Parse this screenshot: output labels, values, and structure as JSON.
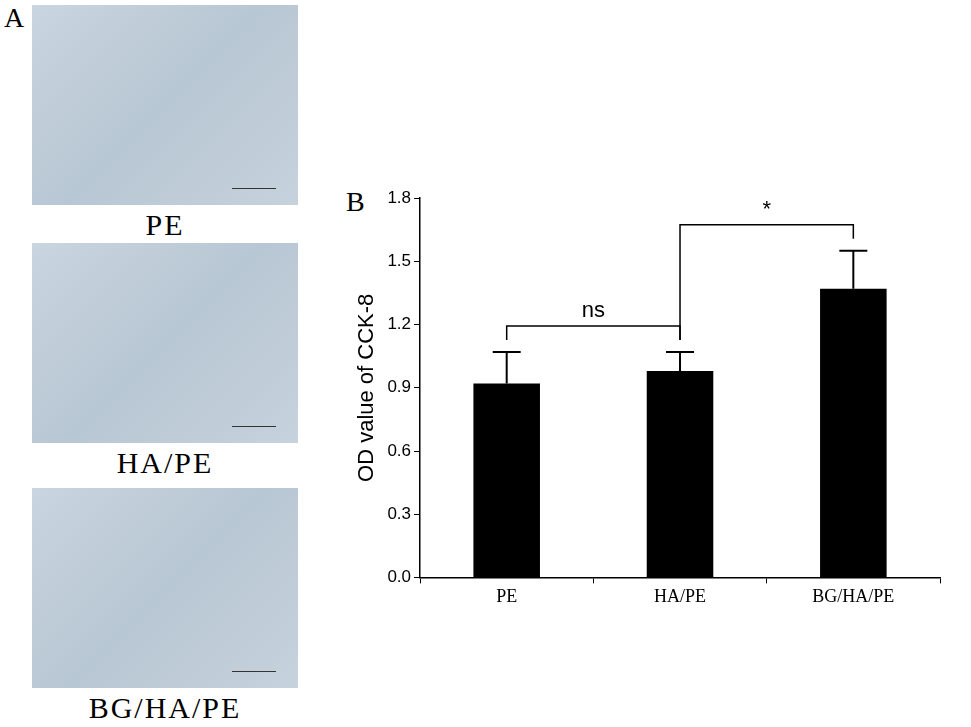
{
  "figure": {
    "panel_labels": [
      "A",
      "B"
    ],
    "photo_captions": [
      "PE",
      "HA/PE",
      "BG/HA/PE"
    ]
  },
  "chart_data": {
    "type": "bar",
    "y_label": "OD value of CCK-8",
    "categories": [
      "PE",
      "HA/PE",
      "BG/HA/PE"
    ],
    "values": [
      0.92,
      0.98,
      1.37
    ],
    "error": [
      0.15,
      0.09,
      0.18
    ],
    "color": "#000000",
    "ylim": [
      0,
      1.8
    ],
    "yticks": [
      {
        "value": 0,
        "label": "0.0"
      },
      0.3,
      0.6,
      0.9,
      1.2,
      1.5,
      1.8
    ],
    "grid": false,
    "annotations": [
      {
        "text": "ns",
        "from": "PE",
        "to": "HA/PE"
      },
      {
        "text": "*",
        "from": "HA/PE",
        "to": "BG/HA/PE"
      }
    ]
  }
}
